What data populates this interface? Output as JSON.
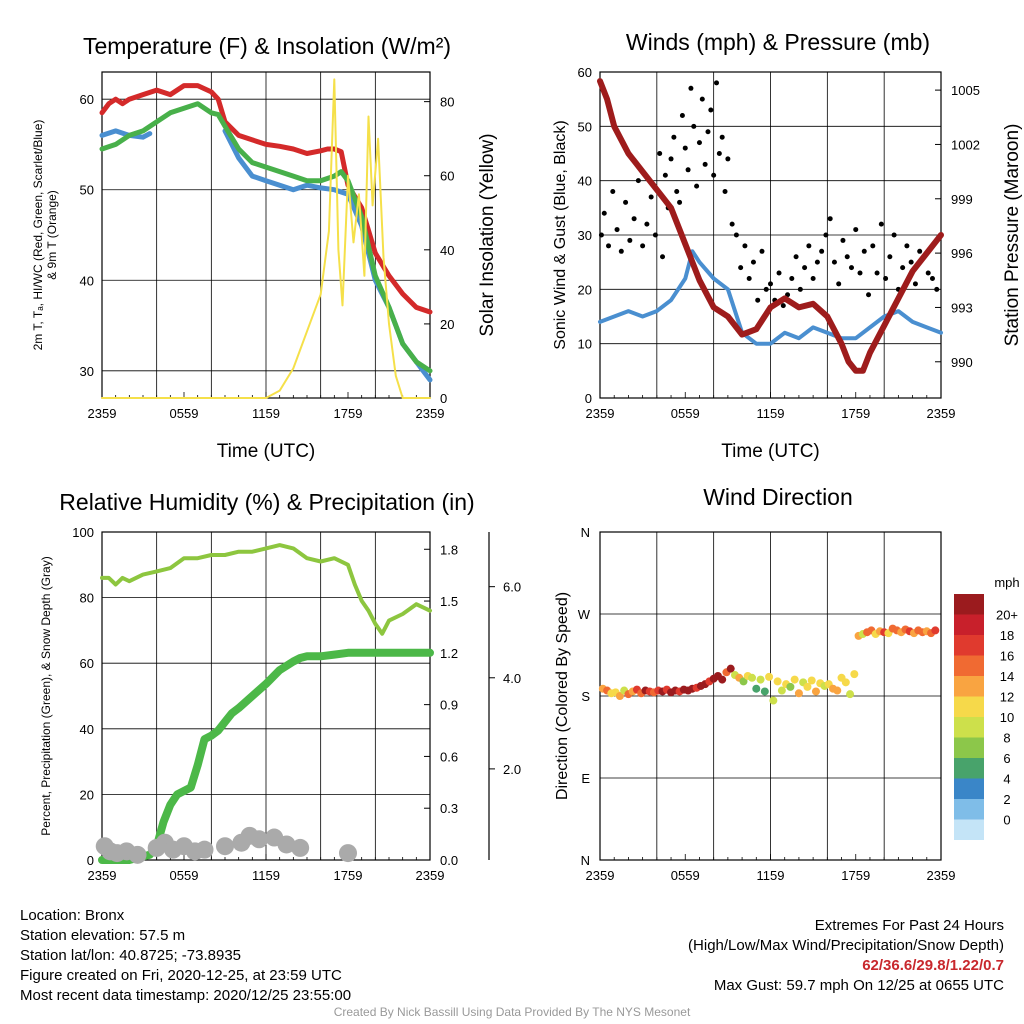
{
  "chart_data": [
    {
      "type": "line",
      "title": "Temperature (F) & Insolation (W/m²)",
      "xlabel": "Time (UTC)",
      "ylabel_lines": [
        "2m T, Tₐ, HI/WC (Red, Green, Scarlet/Blue)",
        "& 9m T (Orange)"
      ],
      "y2label": "Solar Insolation (Yellow)",
      "x_ticks": [
        "2359",
        "0559",
        "1159",
        "1759",
        "2359"
      ],
      "ylim": [
        27,
        63
      ],
      "y_ticks": [
        30,
        40,
        50,
        60
      ],
      "y2lim": [
        0,
        88
      ],
      "y2_ticks": [
        0,
        20,
        40,
        60,
        80
      ],
      "grid": true,
      "series": [
        {
          "color": "#d42a2a",
          "axis": "left",
          "x": [
            0,
            0.5,
            1,
            1.5,
            2,
            3,
            4,
            5,
            6,
            7,
            8,
            8.5,
            9,
            10,
            11,
            12,
            13,
            14,
            15,
            16,
            16.5,
            17,
            17.5,
            18,
            19,
            20,
            21,
            22,
            23,
            24
          ],
          "y": [
            58.5,
            59.5,
            60,
            59.5,
            60,
            60.5,
            61,
            60.5,
            61.5,
            61.5,
            60.8,
            60,
            57.5,
            56,
            55.5,
            55,
            54.8,
            54.5,
            54,
            54.3,
            54.5,
            54.5,
            54.2,
            50.5,
            48,
            43,
            40.5,
            38.5,
            37,
            36.5
          ]
        },
        {
          "color": "#4a8fd0",
          "axis": "left",
          "x": [
            0,
            1,
            2,
            3,
            3.5
          ],
          "y": [
            56,
            56.5,
            56,
            55.8,
            56.2
          ]
        },
        {
          "color": "#4a8fd0",
          "axis": "left",
          "x": [
            9,
            10,
            11,
            12,
            13,
            14,
            15,
            16,
            17,
            18,
            19,
            20,
            21,
            22,
            23,
            24
          ],
          "y": [
            56.5,
            53.5,
            51.5,
            51,
            50.5,
            50,
            50.5,
            50.2,
            50,
            49.5,
            46,
            40,
            37,
            33,
            31,
            29
          ]
        },
        {
          "color": "#48b04a",
          "axis": "left",
          "x": [
            0,
            1,
            2,
            3,
            4,
            5,
            6,
            7,
            8,
            8.5,
            9,
            10,
            11,
            12,
            13,
            14,
            15,
            16,
            17,
            17.5,
            18,
            19,
            20,
            21,
            22,
            23,
            24
          ],
          "y": [
            54.5,
            55,
            56,
            56.5,
            57.5,
            58.5,
            59,
            59.5,
            58.5,
            58.3,
            57,
            54.5,
            53,
            52.5,
            52,
            51.5,
            51,
            51,
            51.5,
            52,
            51,
            47,
            40.5,
            37,
            33,
            31,
            30
          ]
        },
        {
          "color": "#f5e04a",
          "axis": "right",
          "x": [
            0,
            12,
            13,
            14,
            15,
            16,
            16.6,
            17,
            17.3,
            17.6,
            18,
            18.4,
            18.8,
            19.2,
            19.5,
            19.8,
            20.2,
            20.6,
            21,
            21.5,
            22,
            24
          ],
          "y": [
            0,
            0,
            2,
            8,
            18,
            28,
            45,
            86,
            40,
            25,
            60,
            42,
            55,
            33,
            76,
            52,
            70,
            38,
            20,
            6,
            0,
            0
          ]
        }
      ]
    },
    {
      "type": "scatter",
      "title": "Winds (mph) & Pressure (mb)",
      "xlabel": "Time (UTC)",
      "ylabel": "Sonic Wind & Gust (Blue, Black)",
      "y2label": "Station Pressure (Maroon)",
      "x_ticks": [
        "2359",
        "0559",
        "1159",
        "1759",
        "2359"
      ],
      "ylim": [
        0,
        60
      ],
      "y_ticks": [
        0,
        10,
        20,
        30,
        40,
        50,
        60
      ],
      "y2lim": [
        988,
        1006
      ],
      "y2_ticks": [
        990,
        993,
        996,
        999,
        1002,
        1005
      ],
      "grid": true,
      "wind_series": {
        "color": "#4a8fd0",
        "x": [
          0,
          1,
          2,
          3,
          4,
          5,
          6,
          6.5,
          7,
          8,
          9,
          10,
          11,
          12,
          13,
          14,
          15,
          16,
          17,
          18,
          19,
          20,
          21,
          22,
          23,
          24
        ],
        "y": [
          14,
          15,
          16,
          15,
          16,
          18,
          22,
          27,
          25,
          22,
          20,
          12,
          10,
          10,
          12,
          11,
          13,
          12,
          11,
          11,
          13,
          15,
          16,
          14,
          13,
          12
        ]
      },
      "gust_points": {
        "color": "#000000",
        "x": [
          0.1,
          0.3,
          0.6,
          0.9,
          1.2,
          1.5,
          1.8,
          2.1,
          2.4,
          2.7,
          3.0,
          3.3,
          3.6,
          3.9,
          4.2,
          4.4,
          4.6,
          4.8,
          5.0,
          5.2,
          5.4,
          5.6,
          5.8,
          6.0,
          6.2,
          6.4,
          6.6,
          6.8,
          7.0,
          7.2,
          7.4,
          7.6,
          7.8,
          8.0,
          8.2,
          8.4,
          8.6,
          8.8,
          9.0,
          9.3,
          9.6,
          9.9,
          10.2,
          10.5,
          10.8,
          11.1,
          11.4,
          11.7,
          12.0,
          12.3,
          12.6,
          12.9,
          13.2,
          13.5,
          13.8,
          14.1,
          14.4,
          14.7,
          15.0,
          15.3,
          15.6,
          15.9,
          16.2,
          16.5,
          16.8,
          17.1,
          17.4,
          17.7,
          18.0,
          18.3,
          18.6,
          18.9,
          19.2,
          19.5,
          19.8,
          20.1,
          20.4,
          20.7,
          21.0,
          21.3,
          21.6,
          21.9,
          22.2,
          22.5,
          22.8,
          23.1,
          23.4,
          23.7
        ],
        "y": [
          30,
          34,
          28,
          38,
          31,
          27,
          36,
          29,
          33,
          40,
          28,
          32,
          37,
          30,
          45,
          26,
          41,
          35,
          44,
          48,
          38,
          36,
          52,
          46,
          42,
          57,
          50,
          39,
          47,
          55,
          43,
          49,
          53,
          41,
          58,
          45,
          48,
          38,
          44,
          32,
          30,
          24,
          28,
          22,
          25,
          18,
          27,
          20,
          21,
          18,
          23,
          17,
          19,
          22,
          26,
          20,
          24,
          28,
          22,
          25,
          27,
          30,
          33,
          25,
          21,
          29,
          26,
          24,
          31,
          23,
          27,
          19,
          28,
          23,
          32,
          22,
          26,
          30,
          20,
          24,
          28,
          25,
          21,
          27,
          26,
          23,
          22,
          20
        ]
      },
      "pressure_series": {
        "color": "#9e1c1c",
        "x": [
          0,
          0.5,
          1,
          2,
          3,
          4,
          5,
          6,
          7,
          8,
          9,
          10,
          11,
          12,
          13,
          14,
          15,
          16,
          17,
          17.5,
          18,
          18.5,
          19,
          20,
          21,
          22,
          23,
          24
        ],
        "y": [
          1005.5,
          1004.5,
          1003,
          1001.5,
          1000.5,
          999.5,
          998.5,
          996.5,
          994.5,
          993,
          992.5,
          991.5,
          991.8,
          993,
          993.5,
          993,
          993.2,
          992.5,
          991,
          990,
          989.5,
          989.5,
          990.5,
          992,
          993.5,
          995,
          996,
          997
        ]
      }
    },
    {
      "type": "line",
      "title": "Relative Humidity (%) & Precipitation (in)",
      "ylabel": "Percent, Precipitation (Green), & Snow Depth (Gray)",
      "x_ticks": [
        "2359",
        "0559",
        "1159",
        "1759",
        "2359"
      ],
      "ylim": [
        0,
        100
      ],
      "y_ticks": [
        0,
        20,
        40,
        60,
        80,
        100
      ],
      "y2lim": [
        0,
        1.9
      ],
      "y2_ticks": [
        "0.0",
        "0.3",
        "0.6",
        "0.9",
        "1.2",
        "1.5",
        "1.8"
      ],
      "y3lim": [
        0,
        7.2
      ],
      "y3_ticks": [
        "2.0",
        "4.0",
        "6.0"
      ],
      "grid": true,
      "humidity_series": {
        "color": "#8dc63f",
        "x": [
          0,
          0.5,
          1,
          1.5,
          2,
          3,
          4,
          5,
          6,
          7,
          8,
          9,
          10,
          11,
          12,
          13,
          14,
          15,
          16,
          17,
          18,
          18.5,
          19,
          19.5,
          20,
          20.5,
          21,
          22,
          23,
          24
        ],
        "y": [
          86,
          86,
          84,
          86,
          85,
          87,
          88,
          89,
          92,
          92,
          93,
          93,
          94,
          94,
          95,
          96,
          95,
          92,
          91,
          92,
          90,
          84,
          79,
          76,
          72,
          69,
          73,
          75,
          78,
          76
        ]
      },
      "precip_series": {
        "color": "#4cb848",
        "x": [
          0,
          1,
          2,
          3,
          3.5,
          4,
          4.5,
          5,
          5.5,
          6,
          6.5,
          7,
          7.5,
          8,
          8.5,
          9,
          9.5,
          10,
          11,
          12,
          13,
          14,
          14.5,
          15,
          16,
          17,
          18,
          19,
          20,
          21,
          22,
          23,
          24
        ],
        "y": [
          0,
          0,
          0,
          0.02,
          0.03,
          0.08,
          0.22,
          0.32,
          0.38,
          0.4,
          0.42,
          0.55,
          0.7,
          0.72,
          0.75,
          0.8,
          0.85,
          0.88,
          0.95,
          1.02,
          1.1,
          1.15,
          1.17,
          1.18,
          1.18,
          1.19,
          1.2,
          1.2,
          1.2,
          1.2,
          1.2,
          1.2,
          1.2
        ]
      },
      "snow_points": {
        "color": "#aaaaaa",
        "x": [
          0.2,
          0.6,
          1.1,
          1.8,
          2.6,
          4.0,
          4.6,
          5.2,
          6.0,
          6.8,
          7.5,
          9.0,
          10.2,
          10.8,
          11.5,
          12.6,
          13.5,
          14.5,
          18.0
        ],
        "y": [
          0.08,
          0.05,
          0.04,
          0.05,
          0.03,
          0.07,
          0.1,
          0.06,
          0.08,
          0.05,
          0.06,
          0.08,
          0.1,
          0.14,
          0.12,
          0.13,
          0.09,
          0.07,
          0.04
        ]
      }
    },
    {
      "type": "scatter",
      "title": "Wind Direction",
      "ylabel": "Direction (Colored By Speed)",
      "x_ticks": [
        "2359",
        "0559",
        "1159",
        "1759",
        "2359"
      ],
      "y_ticks": [
        "N",
        "E",
        "S",
        "W",
        "N"
      ],
      "ylim": [
        0,
        360
      ],
      "grid": true,
      "legend": {
        "title": "mph",
        "labels": [
          "20+",
          "18",
          "16",
          "14",
          "12",
          "10",
          "8",
          "6",
          "4",
          "2",
          "0"
        ],
        "colors": [
          "#9b1b1e",
          "#c8202b",
          "#e03a2e",
          "#f06a32",
          "#f9a441",
          "#f6d94a",
          "#cde04b",
          "#8cc74a",
          "#48a36b",
          "#3a86c8",
          "#7fbde8",
          "#c4e4f7"
        ],
        "placement": "right"
      },
      "points": {
        "x": [
          0.2,
          0.5,
          0.8,
          1.1,
          1.4,
          1.7,
          2.0,
          2.3,
          2.6,
          2.9,
          3.2,
          3.5,
          3.8,
          4.1,
          4.4,
          4.7,
          5.0,
          5.3,
          5.6,
          5.9,
          6.2,
          6.5,
          6.8,
          7.1,
          7.4,
          7.7,
          8.0,
          8.3,
          8.6,
          8.9,
          9.2,
          9.5,
          9.8,
          10.1,
          10.4,
          10.7,
          11.0,
          11.3,
          11.6,
          11.9,
          12.2,
          12.5,
          12.8,
          13.1,
          13.4,
          13.7,
          14.0,
          14.3,
          14.6,
          14.9,
          15.2,
          15.5,
          15.8,
          16.1,
          16.4,
          16.7,
          17.0,
          17.3,
          17.6,
          17.9,
          18.2,
          18.5,
          18.8,
          19.1,
          19.4,
          19.7,
          20.0,
          20.3,
          20.6,
          20.9,
          21.2,
          21.5,
          21.8,
          22.1,
          22.4,
          22.7,
          23.0,
          23.3,
          23.6
        ],
        "deg": [
          188,
          186,
          183,
          184,
          180,
          186,
          182,
          185,
          187,
          183,
          186,
          185,
          184,
          186,
          185,
          187,
          184,
          186,
          185,
          187,
          186,
          188,
          189,
          191,
          193,
          196,
          199,
          202,
          198,
          206,
          210,
          203,
          200,
          196,
          202,
          200,
          188,
          198,
          185,
          201,
          175,
          196,
          186,
          193,
          190,
          198,
          183,
          195,
          190,
          197,
          185,
          194,
          191,
          193,
          188,
          186,
          200,
          195,
          182,
          204,
          246,
          248,
          250,
          252,
          248,
          251,
          250,
          249,
          254,
          252,
          250,
          253,
          251,
          249,
          252,
          250,
          251,
          249,
          252
        ],
        "mph": [
          14,
          16,
          13,
          12,
          15,
          11,
          17,
          14,
          18,
          16,
          20,
          19,
          17,
          18,
          20,
          19,
          20,
          21,
          18,
          20,
          22,
          20,
          19,
          21,
          20,
          19,
          21,
          22,
          20,
          16,
          20,
          10,
          14,
          9,
          12,
          11,
          7,
          10,
          6,
          12,
          10,
          12,
          11,
          13,
          9,
          12,
          14,
          11,
          13,
          12,
          14,
          13,
          11,
          12,
          14,
          15,
          12,
          13,
          11,
          12,
          14,
          11,
          17,
          16,
          12,
          15,
          18,
          13,
          16,
          17,
          14,
          16,
          19,
          15,
          16,
          17,
          14,
          16,
          18
        ]
      }
    }
  ],
  "info": {
    "location": "Location: Bronx",
    "elevation": "Station elevation: 57.5 m",
    "latlon": "Station lat/lon: 40.8725; -73.8935",
    "created": "Figure created on Fri, 2020-12-25, at 23:59 UTC",
    "recent": "Most recent data timestamp: 2020/12/25 23:55:00"
  },
  "extremes": {
    "title": "Extremes For Past 24 Hours",
    "subtitle": "(High/Low/Max Wind/Precipitation/Snow Depth)",
    "values": "62/36.6/29.8/1.22/0.7",
    "max_gust": "Max Gust: 59.7 mph On 12/25 at 0655 UTC"
  },
  "credit": "Created By Nick Bassill Using Data Provided By The NYS Mesonet"
}
